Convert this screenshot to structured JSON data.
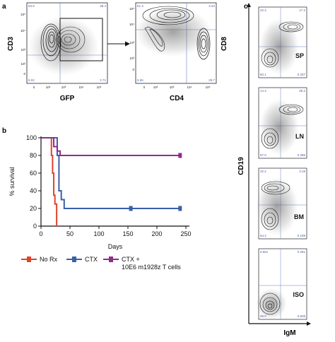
{
  "panel_letters": [
    "a",
    "b",
    "c"
  ],
  "panel_a": {
    "plot1": {
      "xlabel": "GFP",
      "ylabel": "CD3",
      "quadrants": [
        "53.9",
        "39.4",
        "6.02",
        "2.71"
      ],
      "xticks": [
        "0",
        "10²",
        "10³",
        "10⁴",
        "10⁵"
      ],
      "yticks": [
        "0",
        "10²",
        "10³",
        "10⁴",
        "10⁵"
      ]
    },
    "plot2": {
      "xlabel": "CD4",
      "ylabel": "CD8",
      "quadrants": [
        "61.3",
        "3.34",
        "5.65",
        "29.7"
      ],
      "xticks": [
        "0",
        "10²",
        "10³",
        "10⁴",
        "10⁵"
      ],
      "yticks": [
        "0",
        "10²",
        "10³",
        "10⁴",
        "10⁵"
      ]
    }
  },
  "panel_c": {
    "xlabel": "IgM",
    "ylabel": "CD19",
    "plots": [
      {
        "organ": "SP",
        "quadrants": [
          "22.4",
          "17.2",
          "60.1",
          "0.337"
        ]
      },
      {
        "organ": "LN",
        "quadrants": [
          "14.4",
          "28.2",
          "57.0",
          "0.385"
        ]
      },
      {
        "organ": "BM",
        "quadrants": [
          "32.2",
          "3.19",
          "64.4",
          "0.189"
        ]
      },
      {
        "organ": "ISO",
        "quadrants": [
          "0.661",
          "0.291",
          "99.0",
          "0.609"
        ]
      }
    ]
  },
  "chart_data": {
    "type": "line",
    "xlabel": "Days",
    "ylabel": "% survival",
    "xlim": [
      0,
      250
    ],
    "ylim": [
      0,
      100
    ],
    "xticks": [
      0,
      50,
      100,
      150,
      200,
      250
    ],
    "yticks": [
      0,
      20,
      40,
      60,
      80,
      100
    ],
    "series": [
      {
        "name": "No Rx",
        "color": "#e0432b",
        "x": [
          0,
          18,
          18,
          20,
          20,
          22,
          22,
          24,
          24,
          27,
          27
        ],
        "y": [
          100,
          100,
          80,
          80,
          60,
          60,
          35,
          35,
          25,
          25,
          0
        ]
      },
      {
        "name": "CTX",
        "color": "#3a5fa8",
        "x": [
          0,
          28,
          28,
          31,
          31,
          35,
          35,
          40,
          40,
          240
        ],
        "y": [
          100,
          100,
          80,
          80,
          40,
          40,
          30,
          30,
          20,
          20
        ]
      },
      {
        "name": "CTX + 10E6 m1928z T cells",
        "color": "#8e2c8e",
        "x": [
          0,
          22,
          22,
          28,
          28,
          33,
          33,
          240
        ],
        "y": [
          100,
          100,
          90,
          90,
          85,
          85,
          80,
          80
        ]
      }
    ],
    "censor_marks": [
      {
        "series": 1,
        "x": 155,
        "y": 20
      },
      {
        "series": 1,
        "x": 240,
        "y": 20
      },
      {
        "series": 2,
        "x": 240,
        "y": 80
      }
    ],
    "legend": {
      "placement": "bottom",
      "labels": [
        "No Rx",
        "CTX",
        "CTX +",
        "10E6 m1928z T cells"
      ]
    }
  }
}
